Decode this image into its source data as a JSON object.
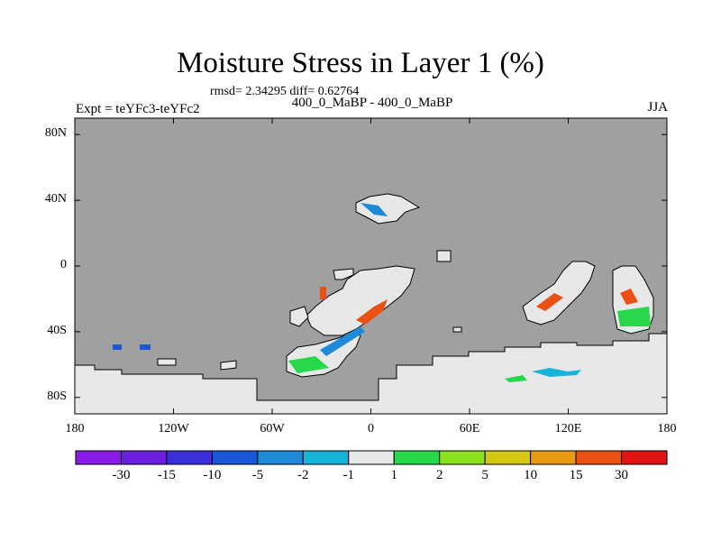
{
  "header": {
    "title": "Moisture Stress in Layer 1 (%)",
    "stats": "rmsd= 2.34295 diff= 0.62764",
    "experiment": "Expt = teYFc3-teYFc2",
    "period": "400_0_MaBP - 400_0_MaBP",
    "season": "JJA"
  },
  "map": {
    "lat_ticks": [
      "80N",
      "40N",
      "0",
      "40S",
      "80S"
    ],
    "lat_values": [
      80,
      40,
      0,
      -40,
      -80
    ],
    "lon_ticks": [
      "180",
      "120W",
      "60W",
      "0",
      "60E",
      "120E",
      "180"
    ],
    "lon_values": [
      -180,
      -120,
      -60,
      0,
      60,
      120,
      180
    ],
    "lat_range": [
      -90,
      90
    ],
    "lon_range": [
      -180,
      180
    ],
    "ocean_color": "#a0a0a0",
    "land_color": "#e8e8e8"
  },
  "colorbar": {
    "labels": [
      "-30",
      "-15",
      "-10",
      "-5",
      "-2",
      "-1",
      "1",
      "2",
      "5",
      "10",
      "15",
      "30"
    ],
    "colors": [
      "#8a1be6",
      "#6a1fe0",
      "#3a2fd8",
      "#1a57d8",
      "#1e8ad8",
      "#16b4d8",
      "#e8e8e8",
      "#28d84c",
      "#8ce020",
      "#d4c814",
      "#e89a14",
      "#e85014",
      "#e01414"
    ]
  }
}
